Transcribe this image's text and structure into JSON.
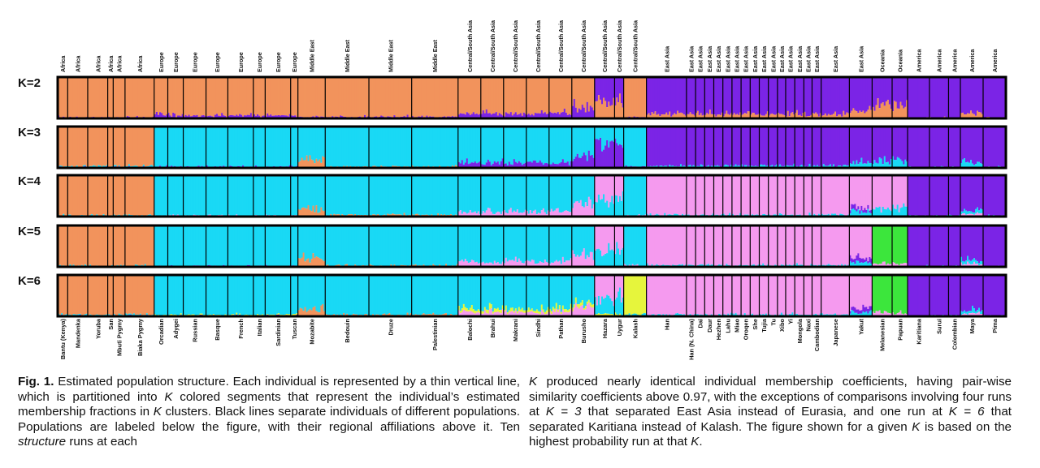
{
  "figure": {
    "k_labels": [
      "K=2",
      "K=3",
      "K=4",
      "K=5",
      "K=6"
    ],
    "colors": {
      "orange": "#F2935C",
      "cyan": "#19D9F5",
      "purple": "#7B24E6",
      "pink": "#F59AEF",
      "green": "#3CE63C",
      "yellow": "#E6F53C",
      "black": "#000000"
    },
    "populations": [
      {
        "name": "Bantu (Kenya)",
        "region": "Africa",
        "group": "AF",
        "n": 11
      },
      {
        "name": "Mandenka",
        "region": "Africa",
        "group": "AF",
        "n": 22
      },
      {
        "name": "Yoruba",
        "region": "Africa",
        "group": "AF",
        "n": 22
      },
      {
        "name": "San",
        "region": "Africa",
        "group": "AF",
        "n": 6
      },
      {
        "name": "Mbuti Pygmy",
        "region": "Africa",
        "group": "AF",
        "n": 13
      },
      {
        "name": "Biaka Pygmy",
        "region": "Africa",
        "group": "AF",
        "n": 32
      },
      {
        "name": "Orcadian",
        "region": "Europe",
        "group": "EU",
        "n": 15
      },
      {
        "name": "Adygei",
        "region": "Europe",
        "group": "EU",
        "n": 17
      },
      {
        "name": "Russian",
        "region": "Europe",
        "group": "EU",
        "n": 25
      },
      {
        "name": "Basque",
        "region": "Europe",
        "group": "EU",
        "n": 24
      },
      {
        "name": "French",
        "region": "Europe",
        "group": "EU",
        "n": 28
      },
      {
        "name": "Italian",
        "region": "Europe",
        "group": "EU",
        "n": 13
      },
      {
        "name": "Sardinian",
        "region": "Europe",
        "group": "EU",
        "n": 28
      },
      {
        "name": "Tuscan",
        "region": "Europe",
        "group": "EU",
        "n": 8
      },
      {
        "name": "Mozabite",
        "region": "Middle East",
        "group": "MZ",
        "n": 30
      },
      {
        "name": "Bedouin",
        "region": "Middle East",
        "group": "ME",
        "n": 48
      },
      {
        "name": "Druze",
        "region": "Middle East",
        "group": "ME",
        "n": 47
      },
      {
        "name": "Palestinian",
        "region": "Middle East",
        "group": "ME",
        "n": 51
      },
      {
        "name": "Balochi",
        "region": "Central/South Asia",
        "group": "CS",
        "n": 25
      },
      {
        "name": "Brahui",
        "region": "Central/South Asia",
        "group": "CS",
        "n": 25
      },
      {
        "name": "Makrani",
        "region": "Central/South Asia",
        "group": "CS",
        "n": 25
      },
      {
        "name": "Sindhi",
        "region": "Central/South Asia",
        "group": "CS",
        "n": 25
      },
      {
        "name": "Pathan",
        "region": "Central/South Asia",
        "group": "CS",
        "n": 25
      },
      {
        "name": "Burusho",
        "region": "Central/South Asia",
        "group": "CS2",
        "n": 25
      },
      {
        "name": "Hazara",
        "region": "Central/South Asia",
        "group": "HZ",
        "n": 22
      },
      {
        "name": "Uygur",
        "region": "Central/South Asia",
        "group": "UY",
        "n": 10
      },
      {
        "name": "Kalash",
        "region": "Central/South Asia",
        "group": "KL",
        "n": 25
      },
      {
        "name": "Han",
        "region": "East Asia",
        "group": "EA",
        "n": 44
      },
      {
        "name": "Han (N. China)",
        "region": "East Asia",
        "group": "EA",
        "n": 10
      },
      {
        "name": "Dai",
        "region": "East Asia",
        "group": "EA",
        "n": 10
      },
      {
        "name": "Daur",
        "region": "East Asia",
        "group": "EA",
        "n": 10
      },
      {
        "name": "Hezhen",
        "region": "East Asia",
        "group": "EA",
        "n": 10
      },
      {
        "name": "Lahu",
        "region": "East Asia",
        "group": "EA",
        "n": 10
      },
      {
        "name": "Miao",
        "region": "East Asia",
        "group": "EA",
        "n": 10
      },
      {
        "name": "Oroqen",
        "region": "East Asia",
        "group": "EA",
        "n": 10
      },
      {
        "name": "She",
        "region": "East Asia",
        "group": "EA",
        "n": 10
      },
      {
        "name": "Tujia",
        "region": "East Asia",
        "group": "EA",
        "n": 10
      },
      {
        "name": "Tu",
        "region": "East Asia",
        "group": "EA",
        "n": 10
      },
      {
        "name": "Xibo",
        "region": "East Asia",
        "group": "EA",
        "n": 9
      },
      {
        "name": "Yi",
        "region": "East Asia",
        "group": "EA",
        "n": 10
      },
      {
        "name": "Mongola",
        "region": "East Asia",
        "group": "EA",
        "n": 10
      },
      {
        "name": "Naxi",
        "region": "East Asia",
        "group": "EA",
        "n": 9
      },
      {
        "name": "Cambodian",
        "region": "East Asia",
        "group": "EA",
        "n": 10
      },
      {
        "name": "Japanese",
        "region": "East Asia",
        "group": "EA",
        "n": 31
      },
      {
        "name": "Yakut",
        "region": "East Asia",
        "group": "YK",
        "n": 25
      },
      {
        "name": "Melanesian",
        "region": "Oceania",
        "group": "OC",
        "n": 22
      },
      {
        "name": "Papuan",
        "region": "Oceania",
        "group": "OC",
        "n": 17
      },
      {
        "name": "Karitiana",
        "region": "America",
        "group": "AM",
        "n": 24
      },
      {
        "name": "Surui",
        "region": "America",
        "group": "AM",
        "n": 21
      },
      {
        "name": "Colombian",
        "region": "America",
        "group": "AM",
        "n": 13
      },
      {
        "name": "Maya",
        "region": "America",
        "group": "AM2",
        "n": 25
      },
      {
        "name": "Pima",
        "region": "America",
        "group": "AM",
        "n": 25
      }
    ]
  },
  "caption": {
    "fig_label": "Fig. 1.",
    "left_text_1": " Estimated population structure. Each individual is represented by a thin vertical line, which is partitioned into ",
    "K": "K",
    "left_text_2": " colored segments that represent the individual’s estimated membership fractions in ",
    "left_text_3": " clusters. Black lines separate individuals of different populations. Populations are labeled below the figure, with their regional affiliations above it. Ten ",
    "structure_word": "structure",
    "left_text_4": " runs at each",
    "right_text_1": " produced nearly identical individual membership coefficients, having pair-wise similarity coefficients above 0.97, with the exceptions of comparisons involving four runs at ",
    "k3": "K = 3",
    "right_text_2": " that separated East Asia instead of Eurasia, and one run at ",
    "k6": "K = 6",
    "right_text_3": " that separated Karitiana instead of Kalash. The figure shown for a given ",
    "right_text_4": " is based on the highest probability run at that ",
    "right_end": "."
  }
}
